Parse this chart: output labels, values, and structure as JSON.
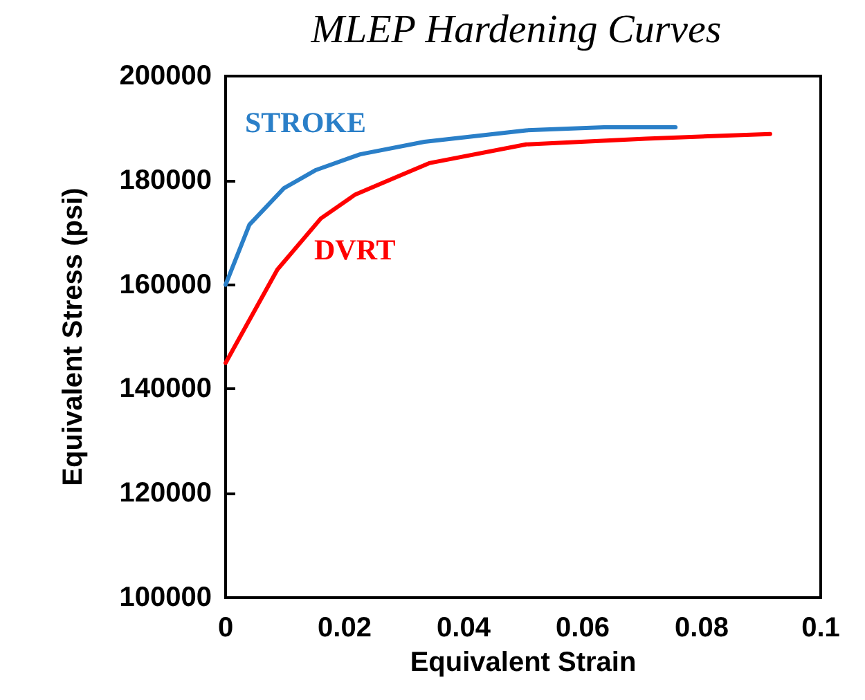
{
  "chart_data": {
    "type": "line",
    "title": "MLEP Hardening Curves",
    "xlabel": "Equivalent Strain",
    "ylabel": "Equivalent Stress (psi)",
    "xlim": [
      0,
      0.1
    ],
    "xticks": [
      0,
      0.02,
      0.04,
      0.06,
      0.08,
      0.1
    ],
    "ylim": [
      100000,
      200000
    ],
    "yticks": [
      100000,
      120000,
      140000,
      160000,
      180000,
      200000
    ],
    "grid": false,
    "legend": false,
    "marker": "none",
    "line_style": "solid",
    "series": [
      {
        "name": "STROKE",
        "color": "#2a7fc8",
        "x": [
          0,
          0.004,
          0.0098,
          0.0152,
          0.0226,
          0.0334,
          0.0505,
          0.0636,
          0.0756
        ],
        "values": [
          160000,
          171500,
          178500,
          182000,
          185000,
          187400,
          189600,
          190200,
          190200
        ]
      },
      {
        "name": "DVRT",
        "color": "#ff0000",
        "x": [
          0,
          0.0087,
          0.016,
          0.0218,
          0.0342,
          0.0505,
          0.0706,
          0.0915
        ],
        "values": [
          145000,
          162900,
          172700,
          177300,
          183300,
          186900,
          188000,
          188900
        ]
      }
    ]
  }
}
